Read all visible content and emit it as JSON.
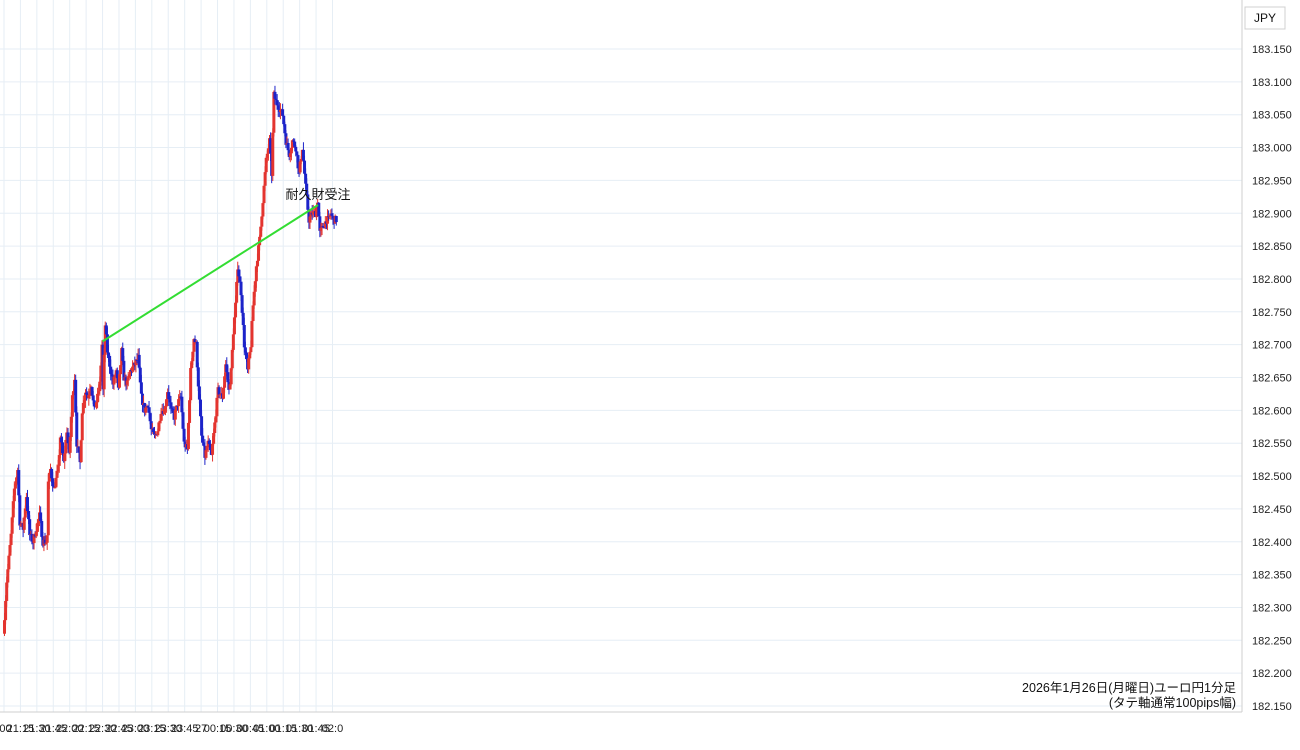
{
  "currency_badge": "JPY",
  "caption": {
    "line1": "2026年1月26日(月曜日)ユーロ円1分足",
    "line2": "(タテ軸通常100pips幅)"
  },
  "annotation": {
    "label": "耐久財受注",
    "color": "#33dd33",
    "target_time": "22:30",
    "target_price": 182.705
  },
  "colors": {
    "up": "#e3342f",
    "down": "#1c23c9",
    "grid": "#e6eef5"
  },
  "chart_data": {
    "type": "candlestick",
    "timeframe": "1m",
    "y_axis": {
      "min": 182.15,
      "max": 183.15,
      "ticks": [
        "183.150",
        "183.100",
        "183.050",
        "183.000",
        "182.950",
        "182.900",
        "182.850",
        "182.800",
        "182.750",
        "182.700",
        "182.650",
        "182.600",
        "182.550",
        "182.500",
        "182.450",
        "182.400",
        "182.350",
        "182.300",
        "182.250",
        "182.200",
        "182.150"
      ]
    },
    "x_axis": {
      "ticks": [
        ":00",
        "21:15",
        "21:30",
        "21:45",
        "22:00",
        "22:15",
        "22:30",
        "22:45",
        "23:00",
        "23:15",
        "23:30",
        "23:45",
        "27",
        "00:15",
        "00:30",
        "00:45",
        "01:00",
        "01:15",
        "01:30",
        "01:45",
        "02:0"
      ]
    },
    "grid": true,
    "anchors": [
      [
        "21:00",
        182.26
      ],
      [
        "21:03",
        182.34
      ],
      [
        "21:07",
        182.41
      ],
      [
        "21:10",
        182.48
      ],
      [
        "21:13",
        182.51
      ],
      [
        "21:15",
        182.43
      ],
      [
        "21:18",
        182.42
      ],
      [
        "21:21",
        182.47
      ],
      [
        "21:24",
        182.41
      ],
      [
        "21:27",
        182.4
      ],
      [
        "21:30",
        182.42
      ],
      [
        "21:33",
        182.44
      ],
      [
        "21:36",
        182.4
      ],
      [
        "21:39",
        182.4
      ],
      [
        "21:40",
        182.41
      ],
      [
        "21:41",
        182.49
      ],
      [
        "21:43",
        182.51
      ],
      [
        "21:46",
        182.48
      ],
      [
        "21:50",
        182.51
      ],
      [
        "21:52",
        182.56
      ],
      [
        "21:55",
        182.52
      ],
      [
        "21:58",
        182.57
      ],
      [
        "22:00",
        182.53
      ],
      [
        "22:03",
        182.62
      ],
      [
        "22:05",
        182.65
      ],
      [
        "22:07",
        182.55
      ],
      [
        "22:10",
        182.52
      ],
      [
        "22:12",
        182.6
      ],
      [
        "22:15",
        182.63
      ],
      [
        "22:17",
        182.62
      ],
      [
        "22:20",
        182.64
      ],
      [
        "22:23",
        182.6
      ],
      [
        "22:26",
        182.62
      ],
      [
        "22:28",
        182.64
      ],
      [
        "22:30",
        182.7
      ],
      [
        "22:31",
        182.63
      ],
      [
        "22:33",
        182.73
      ],
      [
        "22:35",
        182.69
      ],
      [
        "22:38",
        182.66
      ],
      [
        "22:40",
        182.64
      ],
      [
        "22:43",
        182.66
      ],
      [
        "22:45",
        182.63
      ],
      [
        "22:48",
        182.69
      ],
      [
        "22:50",
        182.65
      ],
      [
        "22:53",
        182.64
      ],
      [
        "22:56",
        182.66
      ],
      [
        "23:00",
        182.67
      ],
      [
        "23:03",
        182.68
      ],
      [
        "23:06",
        182.62
      ],
      [
        "23:09",
        182.6
      ],
      [
        "23:12",
        182.61
      ],
      [
        "23:15",
        182.57
      ],
      [
        "23:18",
        182.56
      ],
      [
        "23:21",
        182.57
      ],
      [
        "23:24",
        182.6
      ],
      [
        "23:27",
        182.6
      ],
      [
        "23:30",
        182.63
      ],
      [
        "23:33",
        182.6
      ],
      [
        "23:36",
        182.59
      ],
      [
        "23:39",
        182.61
      ],
      [
        "23:42",
        182.62
      ],
      [
        "23:45",
        182.55
      ],
      [
        "23:48",
        182.54
      ],
      [
        "23:51",
        182.66
      ],
      [
        "23:54",
        182.71
      ],
      [
        "23:56",
        182.7
      ],
      [
        "23:58",
        182.64
      ],
      [
        "24:01",
        182.56
      ],
      [
        "24:04",
        182.53
      ],
      [
        "24:07",
        182.55
      ],
      [
        "24:10",
        182.53
      ],
      [
        "24:13",
        182.58
      ],
      [
        "24:16",
        182.63
      ],
      [
        "24:20",
        182.62
      ],
      [
        "24:23",
        182.67
      ],
      [
        "24:26",
        182.63
      ],
      [
        "24:28",
        182.66
      ],
      [
        "24:30",
        182.72
      ],
      [
        "24:32",
        182.76
      ],
      [
        "24:34",
        182.82
      ],
      [
        "24:37",
        182.78
      ],
      [
        "24:40",
        182.7
      ],
      [
        "24:43",
        182.66
      ],
      [
        "24:46",
        182.7
      ],
      [
        "24:48",
        182.76
      ],
      [
        "24:51",
        182.82
      ],
      [
        "24:54",
        182.86
      ],
      [
        "24:57",
        182.92
      ],
      [
        "25:00",
        182.98
      ],
      [
        "25:03",
        183.01
      ],
      [
        "25:05",
        182.96
      ],
      [
        "25:07",
        183.08
      ],
      [
        "25:09",
        183.07
      ],
      [
        "25:12",
        183.06
      ],
      [
        "25:15",
        183.05
      ],
      [
        "25:18",
        183.01
      ],
      [
        "25:21",
        182.99
      ],
      [
        "25:24",
        183.01
      ],
      [
        "25:27",
        183.0
      ],
      [
        "25:30",
        182.96
      ],
      [
        "25:33",
        183.0
      ],
      [
        "25:36",
        182.94
      ],
      [
        "25:39",
        182.89
      ],
      [
        "25:42",
        182.9
      ],
      [
        "25:45",
        182.9
      ],
      [
        "25:47",
        182.92
      ],
      [
        "25:49",
        182.87
      ],
      [
        "25:52",
        182.88
      ],
      [
        "25:55",
        182.89
      ],
      [
        "25:57",
        182.89
      ],
      [
        "25:59",
        182.9
      ],
      [
        "26:01",
        182.89
      ],
      [
        "26:03",
        182.89
      ]
    ]
  }
}
